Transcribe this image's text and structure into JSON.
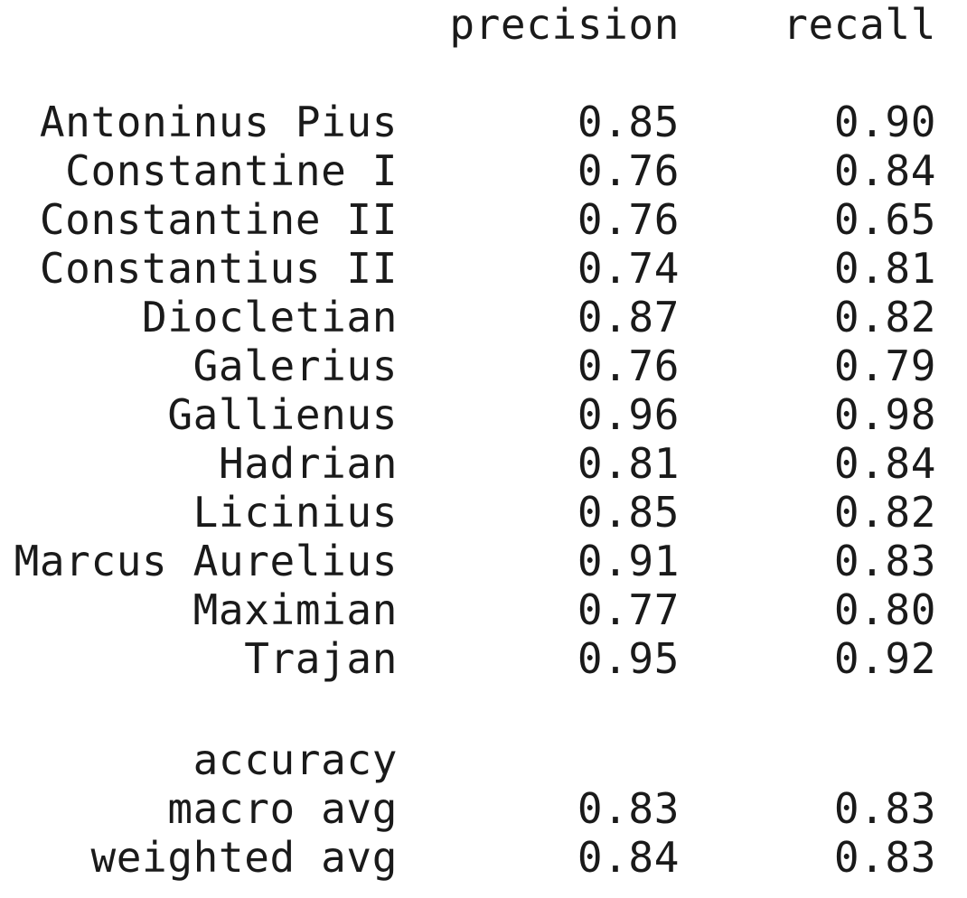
{
  "header": {
    "precision": "precision",
    "recall": "recall"
  },
  "rows": [
    {
      "label": "Antoninus Pius",
      "precision": "0.85",
      "recall": "0.90"
    },
    {
      "label": "Constantine I",
      "precision": "0.76",
      "recall": "0.84"
    },
    {
      "label": "Constantine II",
      "precision": "0.76",
      "recall": "0.65"
    },
    {
      "label": "Constantius II",
      "precision": "0.74",
      "recall": "0.81"
    },
    {
      "label": "Diocletian",
      "precision": "0.87",
      "recall": "0.82"
    },
    {
      "label": "Galerius",
      "precision": "0.76",
      "recall": "0.79"
    },
    {
      "label": "Gallienus",
      "precision": "0.96",
      "recall": "0.98"
    },
    {
      "label": "Hadrian",
      "precision": "0.81",
      "recall": "0.84"
    },
    {
      "label": "Licinius",
      "precision": "0.85",
      "recall": "0.82"
    },
    {
      "label": "Marcus Aurelius",
      "precision": "0.91",
      "recall": "0.83"
    },
    {
      "label": "Maximian",
      "precision": "0.77",
      "recall": "0.80"
    },
    {
      "label": "Trajan",
      "precision": "0.95",
      "recall": "0.92"
    }
  ],
  "summary": [
    {
      "label": "accuracy",
      "precision": "",
      "recall": ""
    },
    {
      "label": "macro avg",
      "precision": "0.83",
      "recall": "0.83"
    },
    {
      "label": "weighted avg",
      "precision": "0.84",
      "recall": "0.83"
    }
  ]
}
